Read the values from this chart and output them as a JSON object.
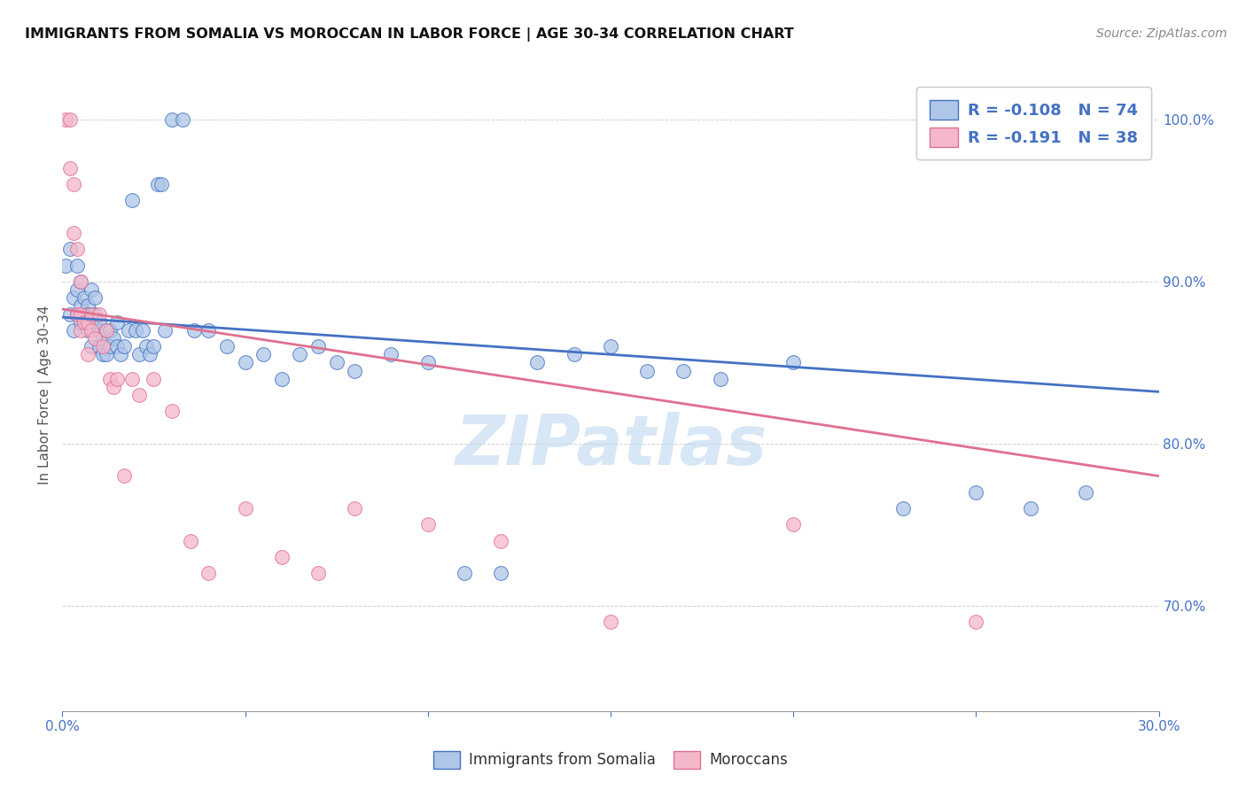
{
  "title": "IMMIGRANTS FROM SOMALIA VS MOROCCAN IN LABOR FORCE | AGE 30-34 CORRELATION CHART",
  "source": "Source: ZipAtlas.com",
  "ylabel": "In Labor Force | Age 30-34",
  "xlim": [
    0.0,
    0.3
  ],
  "ylim": [
    0.635,
    1.025
  ],
  "yticks": [
    0.7,
    0.8,
    0.9,
    1.0
  ],
  "legend_r1": "R = -0.108",
  "legend_n1": "N = 74",
  "legend_r2": "R = -0.191",
  "legend_n2": "N = 38",
  "somalia_color": "#aec6e8",
  "morocco_color": "#f5b8cb",
  "somalia_line_color": "#4472c4",
  "morocco_line_color": "#e07090",
  "background_color": "#ffffff",
  "watermark": "ZIPatlas",
  "somalia_line_x": [
    0.0,
    0.3
  ],
  "somalia_line_y": [
    0.878,
    0.832
  ],
  "morocco_line_x": [
    0.0,
    0.3
  ],
  "morocco_line_y": [
    0.883,
    0.78
  ],
  "somalia_x": [
    0.001,
    0.002,
    0.002,
    0.003,
    0.003,
    0.004,
    0.004,
    0.004,
    0.005,
    0.005,
    0.005,
    0.006,
    0.006,
    0.006,
    0.007,
    0.007,
    0.007,
    0.008,
    0.008,
    0.008,
    0.009,
    0.009,
    0.01,
    0.01,
    0.01,
    0.011,
    0.011,
    0.012,
    0.012,
    0.013,
    0.013,
    0.014,
    0.015,
    0.015,
    0.016,
    0.017,
    0.018,
    0.019,
    0.02,
    0.021,
    0.022,
    0.023,
    0.024,
    0.025,
    0.026,
    0.027,
    0.028,
    0.03,
    0.033,
    0.036,
    0.04,
    0.045,
    0.05,
    0.055,
    0.06,
    0.065,
    0.07,
    0.075,
    0.08,
    0.09,
    0.1,
    0.11,
    0.12,
    0.13,
    0.14,
    0.15,
    0.16,
    0.17,
    0.18,
    0.2,
    0.23,
    0.25,
    0.265,
    0.28
  ],
  "somalia_y": [
    0.91,
    0.92,
    0.88,
    0.89,
    0.87,
    0.91,
    0.88,
    0.895,
    0.875,
    0.885,
    0.9,
    0.88,
    0.89,
    0.875,
    0.885,
    0.87,
    0.88,
    0.895,
    0.86,
    0.875,
    0.88,
    0.89,
    0.87,
    0.86,
    0.875,
    0.855,
    0.865,
    0.87,
    0.855,
    0.86,
    0.87,
    0.865,
    0.86,
    0.875,
    0.855,
    0.86,
    0.87,
    0.95,
    0.87,
    0.855,
    0.87,
    0.86,
    0.855,
    0.86,
    0.96,
    0.96,
    0.87,
    1.0,
    1.0,
    0.87,
    0.87,
    0.86,
    0.85,
    0.855,
    0.84,
    0.855,
    0.86,
    0.85,
    0.845,
    0.855,
    0.85,
    0.72,
    0.72,
    0.85,
    0.855,
    0.86,
    0.845,
    0.845,
    0.84,
    0.85,
    0.76,
    0.77,
    0.76,
    0.77
  ],
  "morocco_x": [
    0.001,
    0.002,
    0.002,
    0.003,
    0.003,
    0.004,
    0.004,
    0.005,
    0.005,
    0.005,
    0.006,
    0.007,
    0.007,
    0.008,
    0.008,
    0.009,
    0.01,
    0.011,
    0.012,
    0.013,
    0.014,
    0.015,
    0.017,
    0.019,
    0.021,
    0.025,
    0.03,
    0.035,
    0.04,
    0.05,
    0.06,
    0.07,
    0.08,
    0.1,
    0.12,
    0.15,
    0.2,
    0.25
  ],
  "morocco_y": [
    1.0,
    1.0,
    0.97,
    0.96,
    0.93,
    0.92,
    0.88,
    0.9,
    0.88,
    0.87,
    0.875,
    0.875,
    0.855,
    0.88,
    0.87,
    0.865,
    0.88,
    0.86,
    0.87,
    0.84,
    0.835,
    0.84,
    0.78,
    0.84,
    0.83,
    0.84,
    0.82,
    0.74,
    0.72,
    0.76,
    0.73,
    0.72,
    0.76,
    0.75,
    0.74,
    0.69,
    0.75,
    0.69
  ]
}
